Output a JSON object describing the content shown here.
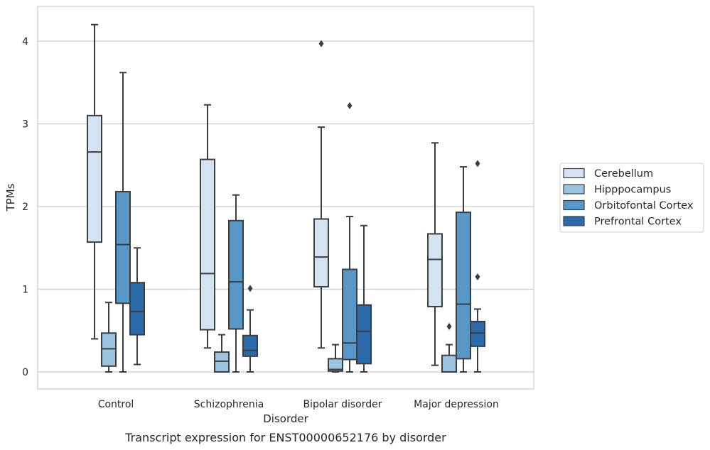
{
  "caption": "Transcript expression for ENST00000652176 by disorder",
  "chart_data": {
    "type": "box",
    "title": "",
    "xlabel": "Disorder",
    "ylabel": "TPMs",
    "ylim": [
      -0.2,
      4.3
    ],
    "yticks": [
      0,
      1,
      2,
      3,
      4
    ],
    "grid": "horizontal",
    "legend_position": "right",
    "categories": [
      "Control",
      "Schizophrenia",
      "Bipolar disorder",
      "Major depression"
    ],
    "series": [
      {
        "name": "Cerebellum",
        "color": "#d3e3f2",
        "boxes": [
          {
            "whislo": 0.4,
            "q1": 1.57,
            "median": 2.66,
            "q3": 3.1,
            "whishi": 4.2,
            "fliers": []
          },
          {
            "whislo": 0.29,
            "q1": 0.51,
            "median": 1.19,
            "q3": 2.57,
            "whishi": 3.23,
            "fliers": []
          },
          {
            "whislo": 0.29,
            "q1": 1.03,
            "median": 1.39,
            "q3": 1.85,
            "whishi": 2.96,
            "fliers": [
              3.97
            ]
          },
          {
            "whislo": 0.08,
            "q1": 0.79,
            "median": 1.36,
            "q3": 1.67,
            "whishi": 2.77,
            "fliers": []
          }
        ]
      },
      {
        "name": "Hipppocampus",
        "color": "#9ac4df",
        "boxes": [
          {
            "whislo": 0.0,
            "q1": 0.07,
            "median": 0.28,
            "q3": 0.47,
            "whishi": 0.84,
            "fliers": []
          },
          {
            "whislo": 0.0,
            "q1": 0.0,
            "median": 0.13,
            "q3": 0.24,
            "whishi": 0.45,
            "fliers": []
          },
          {
            "whislo": 0.0,
            "q1": 0.01,
            "median": 0.03,
            "q3": 0.16,
            "whishi": 0.33,
            "fliers": []
          },
          {
            "whislo": 0.0,
            "q1": 0.0,
            "median": 0.0,
            "q3": 0.2,
            "whishi": 0.33,
            "fliers": [
              0.55
            ]
          }
        ]
      },
      {
        "name": "Orbitofontal Cortex",
        "color": "#5898c8",
        "boxes": [
          {
            "whislo": 0.0,
            "q1": 0.83,
            "median": 1.54,
            "q3": 2.18,
            "whishi": 3.62,
            "fliers": []
          },
          {
            "whislo": 0.0,
            "q1": 0.52,
            "median": 1.09,
            "q3": 1.83,
            "whishi": 2.14,
            "fliers": []
          },
          {
            "whislo": 0.0,
            "q1": 0.15,
            "median": 0.35,
            "q3": 1.24,
            "whishi": 1.88,
            "fliers": [
              3.22
            ]
          },
          {
            "whislo": 0.0,
            "q1": 0.16,
            "median": 0.82,
            "q3": 1.93,
            "whishi": 2.48,
            "fliers": []
          }
        ]
      },
      {
        "name": "Prefrontal Cortex",
        "color": "#2a6aab",
        "boxes": [
          {
            "whislo": 0.09,
            "q1": 0.45,
            "median": 0.73,
            "q3": 1.08,
            "whishi": 1.5,
            "fliers": []
          },
          {
            "whislo": 0.0,
            "q1": 0.19,
            "median": 0.26,
            "q3": 0.44,
            "whishi": 0.75,
            "fliers": [
              1.01
            ]
          },
          {
            "whislo": 0.0,
            "q1": 0.1,
            "median": 0.49,
            "q3": 0.81,
            "whishi": 1.77,
            "fliers": []
          },
          {
            "whislo": 0.0,
            "q1": 0.31,
            "median": 0.47,
            "q3": 0.61,
            "whishi": 0.76,
            "fliers": [
              1.15,
              2.52
            ]
          }
        ]
      }
    ]
  }
}
